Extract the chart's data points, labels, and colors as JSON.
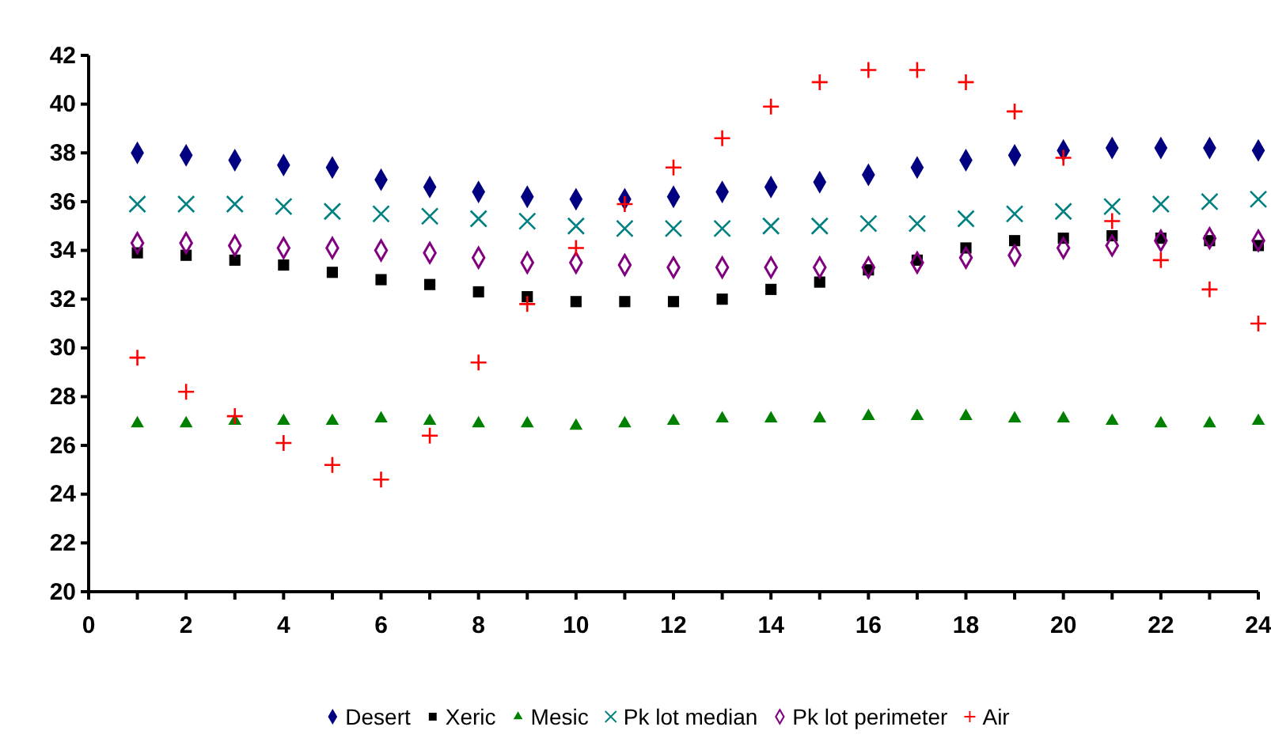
{
  "chart_data": {
    "type": "scatter",
    "x": [
      1,
      2,
      3,
      4,
      5,
      6,
      7,
      8,
      9,
      10,
      11,
      12,
      13,
      14,
      15,
      16,
      17,
      18,
      19,
      20,
      21,
      22,
      23,
      24
    ],
    "series": [
      {
        "name": "Desert",
        "color": "#000080",
        "marker": "diamond",
        "values": [
          38.0,
          37.9,
          37.7,
          37.5,
          37.4,
          36.9,
          36.6,
          36.4,
          36.2,
          36.1,
          36.1,
          36.2,
          36.4,
          36.6,
          36.8,
          37.1,
          37.4,
          37.7,
          37.9,
          38.1,
          38.2,
          38.2,
          38.2,
          38.1
        ]
      },
      {
        "name": "Xeric",
        "color": "#000000",
        "marker": "square",
        "values": [
          33.9,
          33.8,
          33.6,
          33.4,
          33.1,
          32.8,
          32.6,
          32.3,
          32.1,
          31.9,
          31.9,
          31.9,
          32.0,
          32.4,
          32.7,
          33.2,
          33.6,
          34.1,
          34.4,
          34.5,
          34.6,
          34.5,
          34.4,
          34.2
        ]
      },
      {
        "name": "Mesic",
        "color": "#008000",
        "marker": "triangle",
        "values": [
          26.9,
          26.9,
          27.0,
          27.0,
          27.0,
          27.1,
          27.0,
          26.9,
          26.9,
          26.8,
          26.9,
          27.0,
          27.1,
          27.1,
          27.1,
          27.2,
          27.2,
          27.2,
          27.1,
          27.1,
          27.0,
          26.9,
          26.9,
          27.0
        ]
      },
      {
        "name": "Pk lot median",
        "color": "#008080",
        "marker": "cross",
        "values": [
          35.9,
          35.9,
          35.9,
          35.8,
          35.6,
          35.5,
          35.4,
          35.3,
          35.2,
          35.0,
          34.9,
          34.9,
          34.9,
          35.0,
          35.0,
          35.1,
          35.1,
          35.3,
          35.5,
          35.6,
          35.8,
          35.9,
          36.0,
          36.1
        ]
      },
      {
        "name": "Pk lot perimeter",
        "color": "#800080",
        "marker": "diamond-open",
        "values": [
          34.3,
          34.3,
          34.2,
          34.1,
          34.1,
          34.0,
          33.9,
          33.7,
          33.5,
          33.5,
          33.4,
          33.3,
          33.3,
          33.3,
          33.3,
          33.3,
          33.5,
          33.7,
          33.8,
          34.1,
          34.2,
          34.4,
          34.5,
          34.4
        ]
      },
      {
        "name": "Air",
        "color": "#ff0000",
        "marker": "plus",
        "values": [
          29.6,
          28.2,
          27.2,
          26.1,
          25.2,
          24.6,
          26.4,
          29.4,
          31.8,
          34.1,
          35.9,
          37.4,
          38.6,
          39.9,
          40.9,
          41.4,
          41.4,
          40.9,
          39.7,
          37.8,
          35.2,
          33.6,
          32.4,
          31.0
        ]
      }
    ],
    "xlim": [
      0,
      24
    ],
    "xticks": [
      0,
      {
        "value": 1,
        "label": null
      },
      2,
      {
        "value": 3,
        "label": null
      },
      4,
      {
        "value": 5,
        "label": null
      },
      6,
      {
        "value": 7,
        "label": null
      },
      8,
      {
        "value": 9,
        "label": null
      },
      10,
      {
        "value": 11,
        "label": null
      },
      12,
      {
        "value": 13,
        "label": null
      },
      14,
      {
        "value": 15,
        "label": null
      },
      16,
      {
        "value": 17,
        "label": null
      },
      18,
      {
        "value": 19,
        "label": null
      },
      20,
      {
        "value": 21,
        "label": null
      },
      22,
      {
        "value": 23,
        "label": null
      },
      24
    ],
    "ylim": [
      20,
      42
    ],
    "yticks": [
      20,
      22,
      24,
      26,
      28,
      30,
      32,
      34,
      36,
      38,
      40,
      42
    ],
    "grid": false,
    "legend": "bottom"
  }
}
